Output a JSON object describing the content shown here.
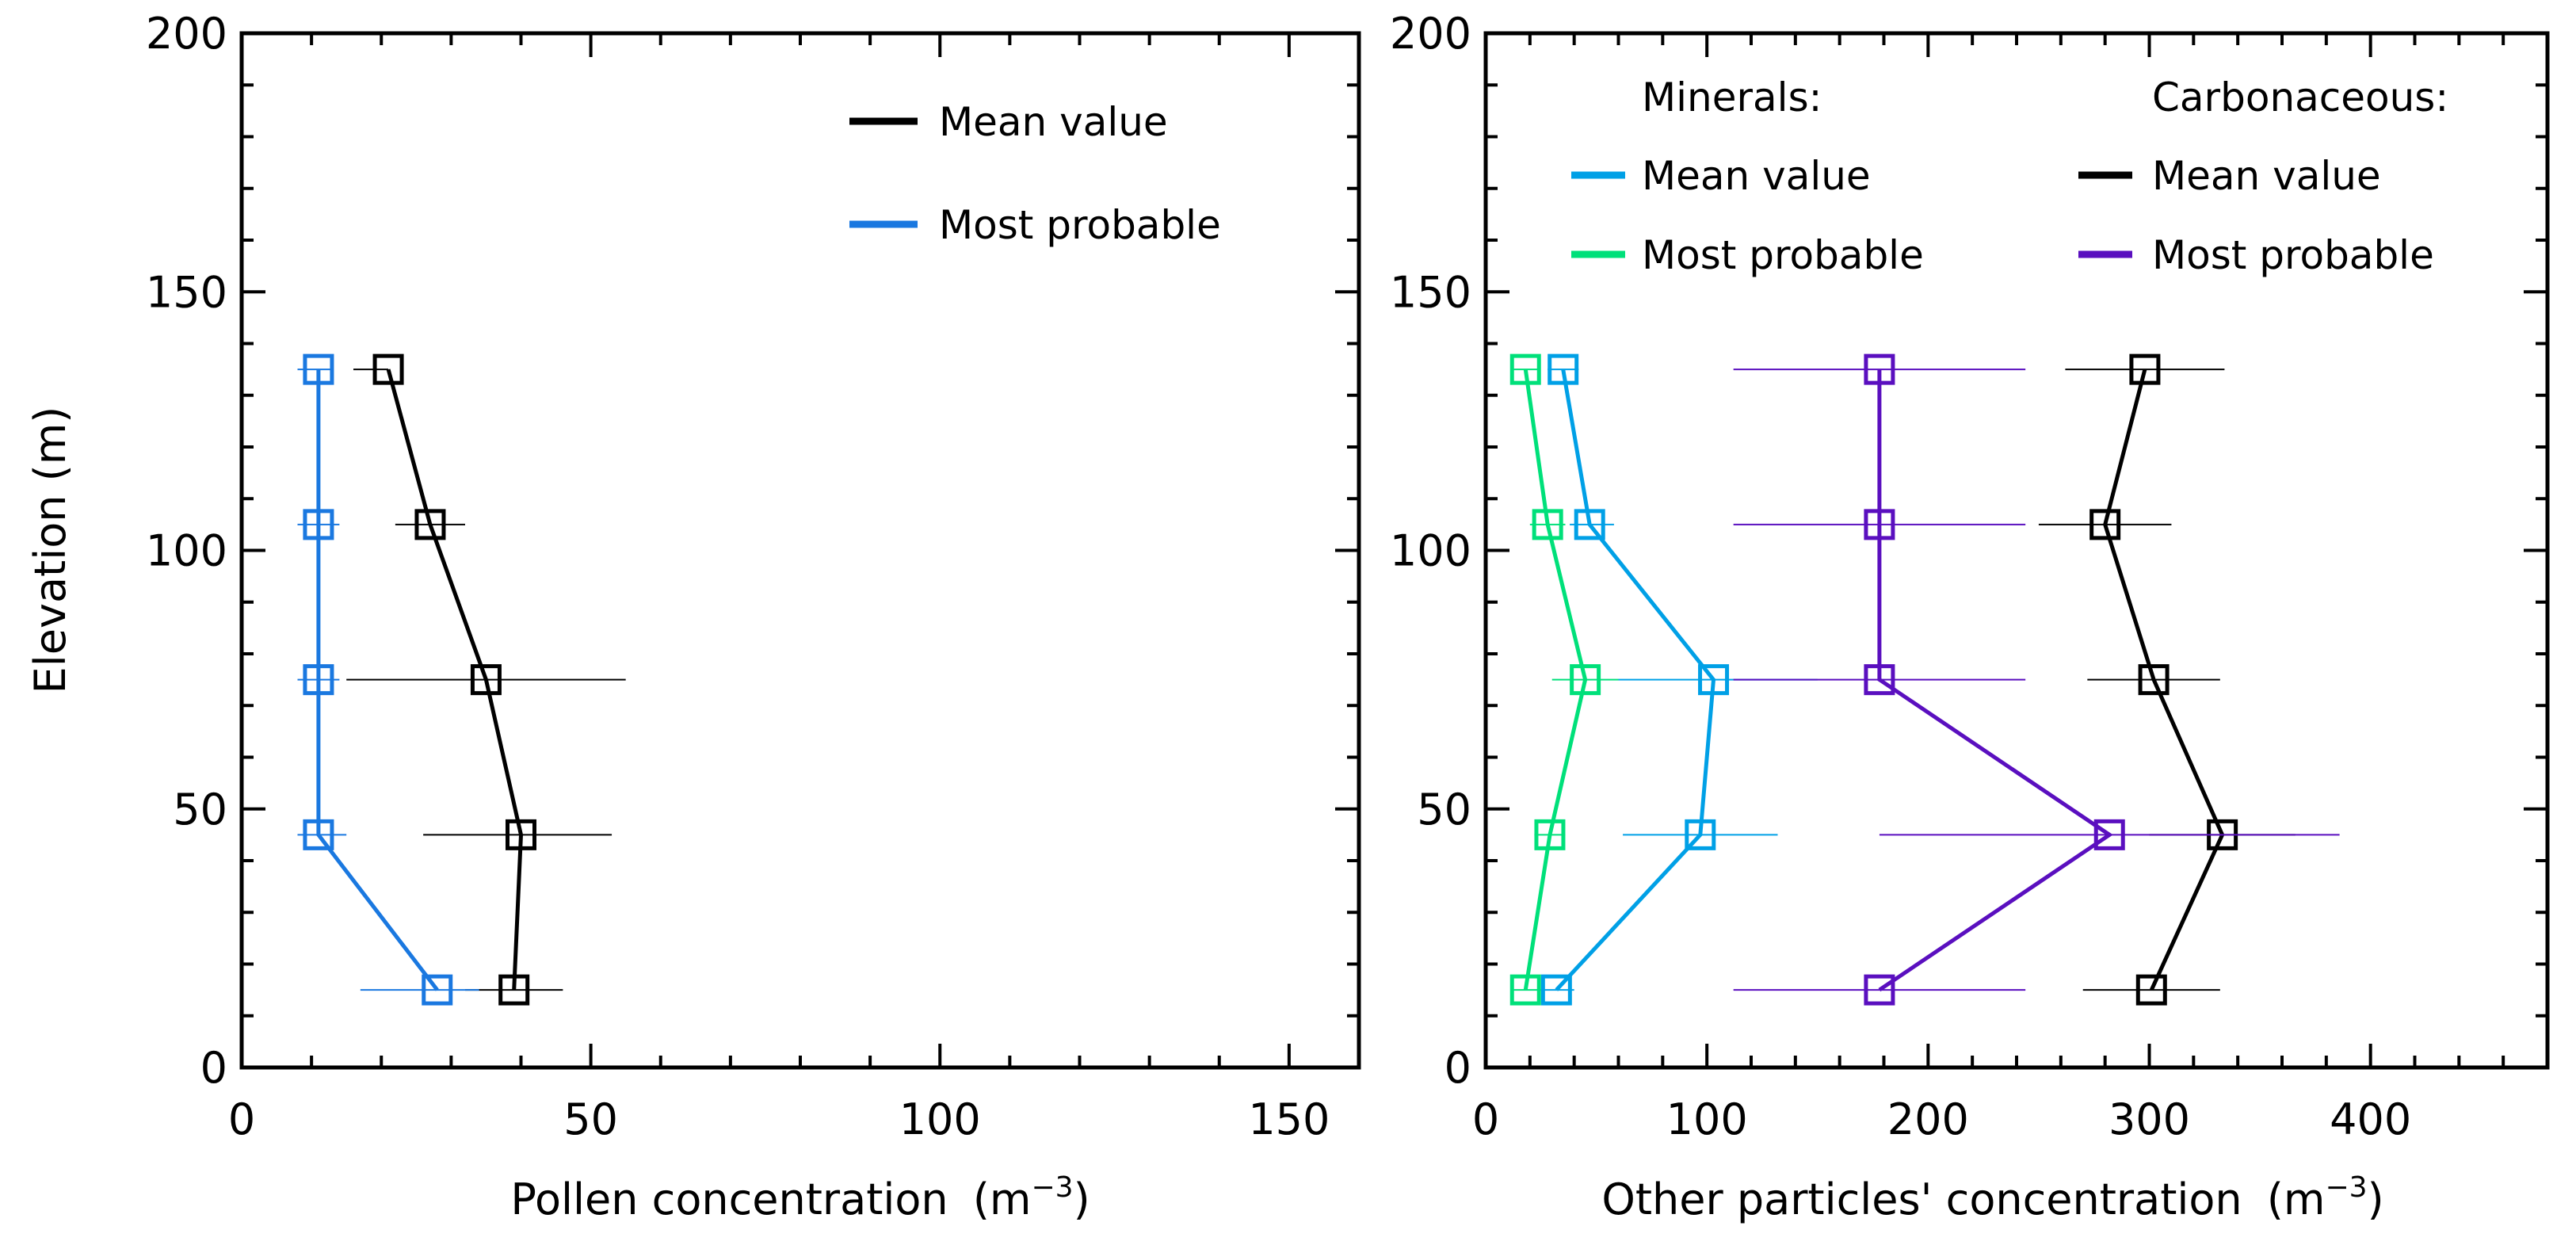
{
  "chart_data": [
    {
      "type": "line",
      "title": "",
      "xlabel": "Pollen concentration",
      "xlabel_unit": "(m",
      "xlabel_exp": "−3",
      "xlabel_close": ")",
      "ylabel": "Elevation (m)",
      "xlim": [
        0,
        160
      ],
      "ylim": [
        0,
        200
      ],
      "xticks": [
        "0",
        "50",
        "100",
        "150"
      ],
      "yticks": [
        "0",
        "50",
        "100",
        "150",
        "200"
      ],
      "legend": {
        "placement": "top-right",
        "entries": [
          "Mean value",
          "Most probable"
        ]
      },
      "series": [
        {
          "name": "Mean value",
          "color": "#000000",
          "points": [
            {
              "y": 135,
              "x": 21,
              "xerr": [
                16,
                21
              ]
            },
            {
              "y": 105,
              "x": 27,
              "xerr": [
                22,
                32
              ]
            },
            {
              "y": 75,
              "x": 35,
              "xerr": [
                15,
                55
              ]
            },
            {
              "y": 45,
              "x": 40,
              "xerr": [
                26,
                53
              ]
            },
            {
              "y": 15,
              "x": 39,
              "xerr": [
                32,
                46
              ]
            }
          ]
        },
        {
          "name": "Most probable",
          "color": "#1a78e0",
          "points": [
            {
              "y": 135,
              "x": 11,
              "xerr": [
                8,
                13
              ]
            },
            {
              "y": 105,
              "x": 11,
              "xerr": [
                8,
                14
              ]
            },
            {
              "y": 75,
              "x": 11,
              "xerr": [
                8,
                14
              ]
            },
            {
              "y": 45,
              "x": 11,
              "xerr": [
                8,
                15
              ]
            },
            {
              "y": 15,
              "x": 28,
              "xerr": [
                17,
                34
              ]
            }
          ]
        }
      ]
    },
    {
      "type": "line",
      "title": "",
      "xlabel": "Other particles' concentration",
      "xlabel_unit": "(m",
      "xlabel_exp": "−3",
      "xlabel_close": ")",
      "ylabel": "",
      "xlim": [
        0,
        480
      ],
      "ylim": [
        0,
        200
      ],
      "xticks": [
        "0",
        "100",
        "200",
        "300",
        "400"
      ],
      "yticks": [
        "0",
        "50",
        "100",
        "150",
        "200"
      ],
      "legend": {
        "placement": "top",
        "groups": [
          {
            "title": "Minerals:",
            "entries": [
              "Mean value",
              "Most probable"
            ]
          },
          {
            "title": "Carbonaceous:",
            "entries": [
              "Mean value",
              "Most probable"
            ]
          }
        ]
      },
      "series": [
        {
          "name": "Minerals: Mean value",
          "color": "#00a0e6",
          "points": [
            {
              "y": 135,
              "x": 35,
              "xerr": [
                28,
                42
              ]
            },
            {
              "y": 105,
              "x": 47,
              "xerr": [
                38,
                58
              ]
            },
            {
              "y": 75,
              "x": 103,
              "xerr": [
                60,
                150
              ]
            },
            {
              "y": 45,
              "x": 97,
              "xerr": [
                62,
                132
              ]
            },
            {
              "y": 15,
              "x": 32,
              "xerr": [
                24,
                40
              ]
            }
          ]
        },
        {
          "name": "Minerals: Most probable",
          "color": "#00e07a",
          "points": [
            {
              "y": 135,
              "x": 18,
              "xerr": [
                12,
                24
              ]
            },
            {
              "y": 105,
              "x": 28,
              "xerr": [
                20,
                36
              ]
            },
            {
              "y": 75,
              "x": 45,
              "xerr": [
                30,
                60
              ]
            },
            {
              "y": 45,
              "x": 29,
              "xerr": [
                22,
                36
              ]
            },
            {
              "y": 15,
              "x": 18,
              "xerr": [
                12,
                24
              ]
            }
          ]
        },
        {
          "name": "Carbonaceous: Mean value",
          "color": "#000000",
          "points": [
            {
              "y": 135,
              "x": 298,
              "xerr": [
                262,
                334
              ]
            },
            {
              "y": 105,
              "x": 280,
              "xerr": [
                250,
                310
              ]
            },
            {
              "y": 75,
              "x": 302,
              "xerr": [
                272,
                332
              ]
            },
            {
              "y": 45,
              "x": 333,
              "xerr": [
                300,
                366
              ]
            },
            {
              "y": 15,
              "x": 301,
              "xerr": [
                270,
                332
              ]
            }
          ]
        },
        {
          "name": "Carbonaceous: Most probable",
          "color": "#5a0fbf",
          "points": [
            {
              "y": 135,
              "x": 178,
              "xerr": [
                112,
                244
              ]
            },
            {
              "y": 105,
              "x": 178,
              "xerr": [
                112,
                244
              ]
            },
            {
              "y": 75,
              "x": 178,
              "xerr": [
                112,
                244
              ]
            },
            {
              "y": 45,
              "x": 282,
              "xerr": [
                178,
                386
              ]
            },
            {
              "y": 15,
              "x": 178,
              "xerr": [
                112,
                244
              ]
            }
          ]
        }
      ]
    }
  ]
}
